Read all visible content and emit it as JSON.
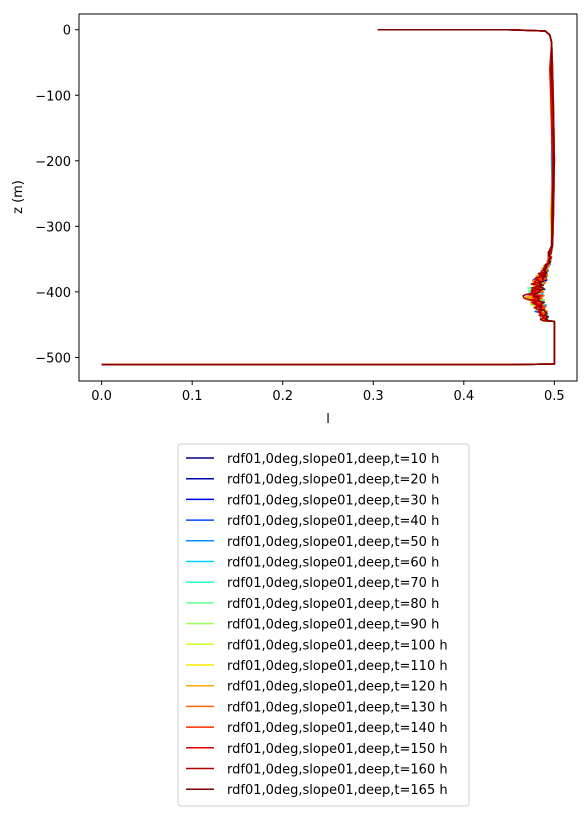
{
  "chart_data": {
    "type": "line",
    "title": "",
    "xlabel": "l",
    "ylabel": "z (m)",
    "xlim": [
      -0.025,
      0.525
    ],
    "ylim": [
      -536,
      24
    ],
    "xticks": [
      0.0,
      0.1,
      0.2,
      0.3,
      0.4,
      0.5
    ],
    "xtick_labels": [
      "0.0",
      "0.1",
      "0.2",
      "0.3",
      "0.4",
      "0.5"
    ],
    "yticks": [
      0,
      -100,
      -200,
      -300,
      -400,
      -500
    ],
    "ytick_labels": [
      "0",
      "−100",
      "−200",
      "−300",
      "−400",
      "−500"
    ],
    "grid": false,
    "legend_placement": "below",
    "profile": {
      "surface": [
        [
          0.305,
          0
        ],
        [
          0.45,
          0
        ],
        [
          0.49,
          -2
        ],
        [
          0.495,
          -8
        ],
        [
          0.497,
          -20
        ]
      ],
      "middle": [
        [
          0.498,
          -60
        ],
        [
          0.499,
          -120
        ],
        [
          0.5,
          -200
        ],
        [
          0.499,
          -280
        ],
        [
          0.498,
          -330
        ]
      ],
      "bottom": [
        [
          0.5,
          -445
        ],
        [
          0.5,
          -500
        ],
        [
          0.5,
          -510
        ],
        [
          0.45,
          -511
        ],
        [
          0.2,
          -511
        ],
        [
          0.05,
          -511
        ],
        [
          0.0,
          -511
        ]
      ],
      "noise_band": [
        -340,
        -445
      ],
      "noise_center": -405
    },
    "series": [
      {
        "name": "rdf01,0deg,slope01,deep,t=10 h",
        "color": "#000080"
      },
      {
        "name": "rdf01,0deg,slope01,deep,t=20 h",
        "color": "#0000b2"
      },
      {
        "name": "rdf01,0deg,slope01,deep,t=30 h",
        "color": "#0000f1"
      },
      {
        "name": "rdf01,0deg,slope01,deep,t=40 h",
        "color": "#004cff"
      },
      {
        "name": "rdf01,0deg,slope01,deep,t=50 h",
        "color": "#0090ff"
      },
      {
        "name": "rdf01,0deg,slope01,deep,t=60 h",
        "color": "#00d4ff"
      },
      {
        "name": "rdf01,0deg,slope01,deep,t=70 h",
        "color": "#29ffce"
      },
      {
        "name": "rdf01,0deg,slope01,deep,t=80 h",
        "color": "#60ff97"
      },
      {
        "name": "rdf01,0deg,slope01,deep,t=90 h",
        "color": "#97ff60"
      },
      {
        "name": "rdf01,0deg,slope01,deep,t=100 h",
        "color": "#ceff29"
      },
      {
        "name": "rdf01,0deg,slope01,deep,t=110 h",
        "color": "#ffe600"
      },
      {
        "name": "rdf01,0deg,slope01,deep,t=120 h",
        "color": "#ffa700"
      },
      {
        "name": "rdf01,0deg,slope01,deep,t=130 h",
        "color": "#ff6800"
      },
      {
        "name": "rdf01,0deg,slope01,deep,t=140 h",
        "color": "#ff2900"
      },
      {
        "name": "rdf01,0deg,slope01,deep,t=150 h",
        "color": "#e80000"
      },
      {
        "name": "rdf01,0deg,slope01,deep,t=160 h",
        "color": "#b20000"
      },
      {
        "name": "rdf01,0deg,slope01,deep,t=165 h",
        "color": "#800000"
      }
    ]
  }
}
